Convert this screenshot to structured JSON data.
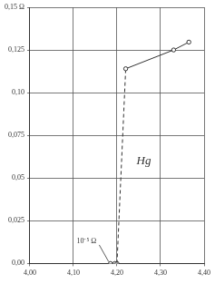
{
  "chart_data": {
    "type": "scatter",
    "series": [
      {
        "x": [
          4.22,
          4.33,
          4.365
        ],
        "values": [
          0.114,
          0.125,
          0.1296
        ],
        "color": "#333333",
        "marker": "circle",
        "line_style": "solid"
      },
      {
        "x": [
          4.2,
          4.22
        ],
        "values": [
          0,
          0.114
        ],
        "color": "#333333",
        "marker": "none",
        "line_style": "dashed"
      },
      {
        "x": [
          4.185,
          4.195,
          4.2
        ],
        "values": [
          0,
          0,
          0
        ],
        "color": "#333333",
        "marker": "circle",
        "line_style": "none"
      }
    ],
    "xlim": [
      4.0,
      4.4
    ],
    "xticks": [
      {
        "value": 4.0,
        "label": "4,00"
      },
      {
        "value": 4.1,
        "label": "4,10"
      },
      {
        "value": 4.2,
        "label": "4,20"
      },
      {
        "value": 4.3,
        "label": "4,30"
      },
      {
        "value": 4.4,
        "label": "4,40"
      }
    ],
    "ylim": [
      0,
      0.15
    ],
    "yticks": [
      {
        "value": 0,
        "label": "0,00"
      },
      {
        "value": 0.025,
        "label": "0,025"
      },
      {
        "value": 0.05,
        "label": "0,05"
      },
      {
        "value": 0.075,
        "label": "0,075"
      },
      {
        "value": 0.1,
        "label": "0,10"
      },
      {
        "value": 0.125,
        "label": "0,125"
      },
      {
        "value": 0.15,
        "label": "0,15 Ω"
      }
    ],
    "annotations": [
      {
        "text": "Hg",
        "x": 4.245,
        "y": 0.06
      },
      {
        "text": "10⁻⁵ Ω",
        "x": 4.13,
        "y": 0.013
      }
    ],
    "grid": true
  }
}
